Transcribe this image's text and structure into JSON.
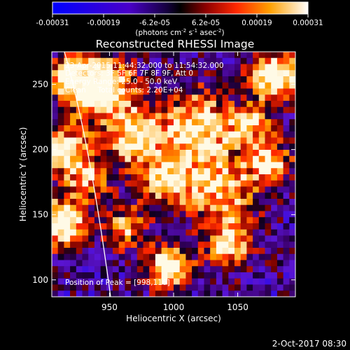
{
  "chart_data": {
    "type": "heatmap",
    "title": "Reconstructed RHESSI Image",
    "xlabel": "Heliocentric X (arcsec)",
    "ylabel": "Heliocentric Y (arcsec)",
    "x_ticks": [
      950,
      1000,
      1050
    ],
    "y_ticks": [
      100,
      150,
      200,
      250
    ],
    "xlim": [
      905,
      1095
    ],
    "ylim": [
      87,
      275
    ],
    "colorbar": {
      "ticks": [
        "-0.00031",
        "-0.00019",
        "-6.2e-05",
        "6.2e-05",
        "0.00019",
        "0.00031"
      ],
      "range": [
        -0.00031,
        0.00031
      ],
      "units_prefix": "(photons cm",
      "units_sup1": "-2",
      "units_mid": " s",
      "units_sup2": "-1",
      "units_mid2": " asec",
      "units_sup3": "-2",
      "units_suffix": ")"
    },
    "annotations": {
      "time_range": "23-Apr-2015 11:44:32.000 to 11:54:32.000",
      "detectors": "Detectors: 3F 5F 6F 7F 8F 9F, Att 0",
      "energy": "Energy Range: 25.0 - 50.0 keV",
      "clean": "Clean     Total counts: 2.20E+04",
      "peak": "Position of Peak = [998,116]"
    },
    "footer_date": "2-Oct-2017 08:30",
    "grid": false,
    "limb_visible": true
  }
}
